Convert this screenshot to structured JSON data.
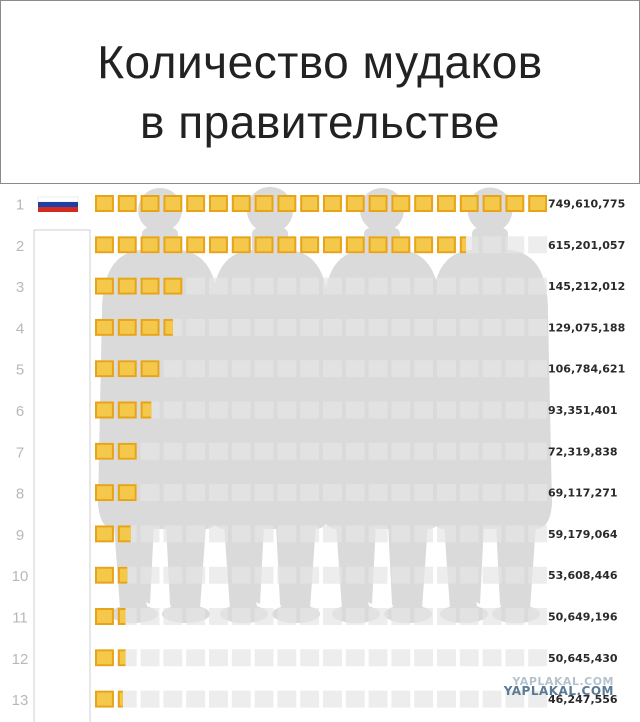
{
  "title": {
    "line1": "Количество мудаков",
    "line2": "в правительстве"
  },
  "colors": {
    "bar_fill": "#e8a317",
    "bar_fill_light": "#f4c84a",
    "bar_empty": "#e6e6e6",
    "silhouette": "#d4d4d4",
    "rank_text": "#b8b8b8",
    "value_text": "#2a2a2a",
    "flag_white": "#ffffff",
    "flag_blue": "#1c3fa8",
    "flag_red": "#d52b1e"
  },
  "flag": {
    "icon": "russia-flag-icon"
  },
  "watermark": {
    "line1": "YAPLAKAL.COM",
    "line2": "YAPLAKAL.COM"
  },
  "chart_data": {
    "type": "bar",
    "orientation": "horizontal",
    "categories": [
      "1",
      "2",
      "3",
      "4",
      "5",
      "6",
      "7",
      "8",
      "9",
      "10",
      "11",
      "12",
      "13"
    ],
    "values": [
      749610775,
      615201057,
      145212012,
      129075188,
      106784621,
      93351401,
      72319838,
      69117271,
      59179064,
      53608446,
      50649196,
      50645430,
      46247556
    ],
    "value_labels": [
      "749,610,775",
      "615,201,057",
      "145,212,012",
      "129,075,188",
      "106,784,621",
      "93,351,401",
      "72,319,838",
      "69,117,271",
      "59,179,064",
      "53,608,446",
      "50,649,196",
      "50,645,430",
      "46,247,556"
    ],
    "xlim": [
      0,
      749610775
    ],
    "grid": false,
    "legend": "none"
  }
}
